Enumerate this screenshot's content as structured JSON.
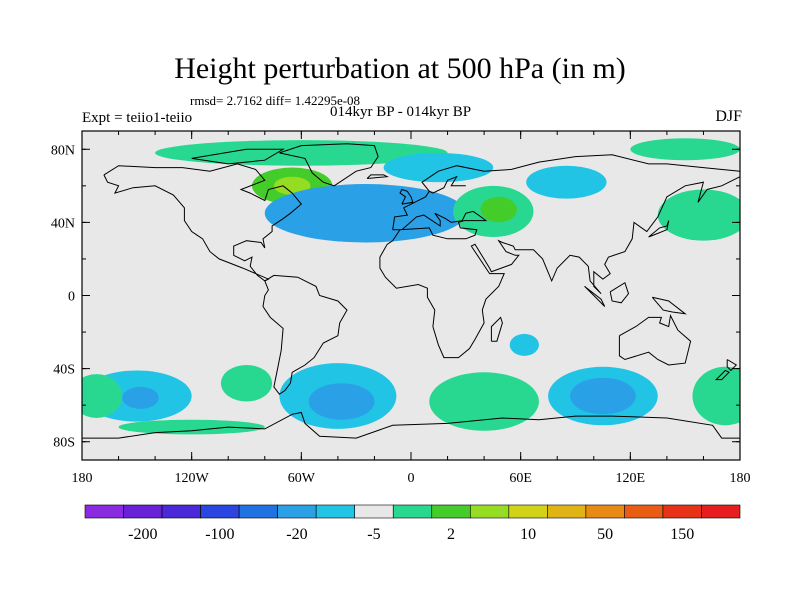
{
  "title": "Height perturbation at 500 hPa (in m)",
  "stats": "rmsd= 2.7162 diff= 1.42295e-08",
  "experiment": "Expt = teiio1-teiio",
  "period": "014kyr BP - 014kyr BP",
  "season": "DJF",
  "map": {
    "projection": "cylindrical-equidistant",
    "lon_range": [
      -180,
      180
    ],
    "lat_range": [
      -90,
      90
    ],
    "background_color": "#e8e8e8",
    "coastlines": "black",
    "x_tick_labels": [
      "180",
      "120W",
      "60W",
      "0",
      "60E",
      "120E",
      "180"
    ],
    "y_tick_labels": [
      "80N",
      "40N",
      "0",
      "40S",
      "80S"
    ]
  },
  "colorbar": {
    "colors": [
      "#8a2be2",
      "#6a1fd8",
      "#4b28d8",
      "#2a45e0",
      "#1f72e0",
      "#2aa0e6",
      "#22c4e6",
      "#e8e8e8",
      "#28d890",
      "#44cc2a",
      "#96dc22",
      "#d2d218",
      "#e0b414",
      "#e88a14",
      "#e85c14",
      "#e83218",
      "#e81e1e"
    ],
    "labels": [
      "-200",
      "-100",
      "-20",
      "-5",
      "2",
      "10",
      "50",
      "150"
    ]
  },
  "anomalies": [
    {
      "name": "arctic-band",
      "level": "+",
      "lon": -60,
      "lat": 78,
      "rx": 80,
      "ry": 7
    },
    {
      "name": "labrador-high",
      "level": "++",
      "lon": -65,
      "lat": 60,
      "rx": 22,
      "ry": 10
    },
    {
      "name": "labrador-high-core",
      "level": "+++",
      "lon": -65,
      "lat": 60,
      "rx": 10,
      "ry": 5
    },
    {
      "name": "north-atlantic-low",
      "level": "--",
      "lon": -25,
      "lat": 45,
      "rx": 55,
      "ry": 16
    },
    {
      "name": "europe-low",
      "level": "-",
      "lon": 15,
      "lat": 70,
      "rx": 30,
      "ry": 8
    },
    {
      "name": "siberia-low",
      "level": "-",
      "lon": 85,
      "lat": 62,
      "rx": 22,
      "ry": 9
    },
    {
      "name": "mideast-high",
      "level": "+",
      "lon": 45,
      "lat": 46,
      "rx": 22,
      "ry": 14
    },
    {
      "name": "mideast-high-core",
      "level": "++",
      "lon": 48,
      "lat": 47,
      "rx": 10,
      "ry": 7
    },
    {
      "name": "east-asia-high",
      "level": "+",
      "lon": 160,
      "lat": 44,
      "rx": 25,
      "ry": 14
    },
    {
      "name": "arctic-east-high",
      "level": "+",
      "lon": 150,
      "lat": 80,
      "rx": 30,
      "ry": 6
    },
    {
      "name": "south-pacific-low-w",
      "level": "-",
      "lon": -150,
      "lat": -55,
      "rx": 30,
      "ry": 14
    },
    {
      "name": "south-pacific-low-w-core",
      "level": "--",
      "lon": -148,
      "lat": -56,
      "rx": 10,
      "ry": 6
    },
    {
      "name": "south-pacific-high",
      "level": "+",
      "lon": -90,
      "lat": -48,
      "rx": 14,
      "ry": 10
    },
    {
      "name": "south-atlantic-low",
      "level": "-",
      "lon": -40,
      "lat": -55,
      "rx": 32,
      "ry": 18
    },
    {
      "name": "south-atlantic-low-core",
      "level": "--",
      "lon": -38,
      "lat": -58,
      "rx": 18,
      "ry": 10
    },
    {
      "name": "south-africa-high",
      "level": "+",
      "lon": 40,
      "lat": -58,
      "rx": 30,
      "ry": 16
    },
    {
      "name": "madagascar-low",
      "level": "-",
      "lon": 62,
      "lat": -27,
      "rx": 8,
      "ry": 6
    },
    {
      "name": "indian-ocean-low",
      "level": "-",
      "lon": 105,
      "lat": -55,
      "rx": 30,
      "ry": 16
    },
    {
      "name": "indian-ocean-low-core",
      "level": "--",
      "lon": 105,
      "lat": -55,
      "rx": 18,
      "ry": 10
    },
    {
      "name": "tasman-high",
      "level": "+",
      "lon": 172,
      "lat": -55,
      "rx": 18,
      "ry": 16
    },
    {
      "name": "dateline-high-w",
      "level": "+",
      "lon": -172,
      "lat": -55,
      "rx": 14,
      "ry": 12
    },
    {
      "name": "antarctic-band",
      "level": "+",
      "lon": -120,
      "lat": -72,
      "rx": 40,
      "ry": 4
    }
  ]
}
